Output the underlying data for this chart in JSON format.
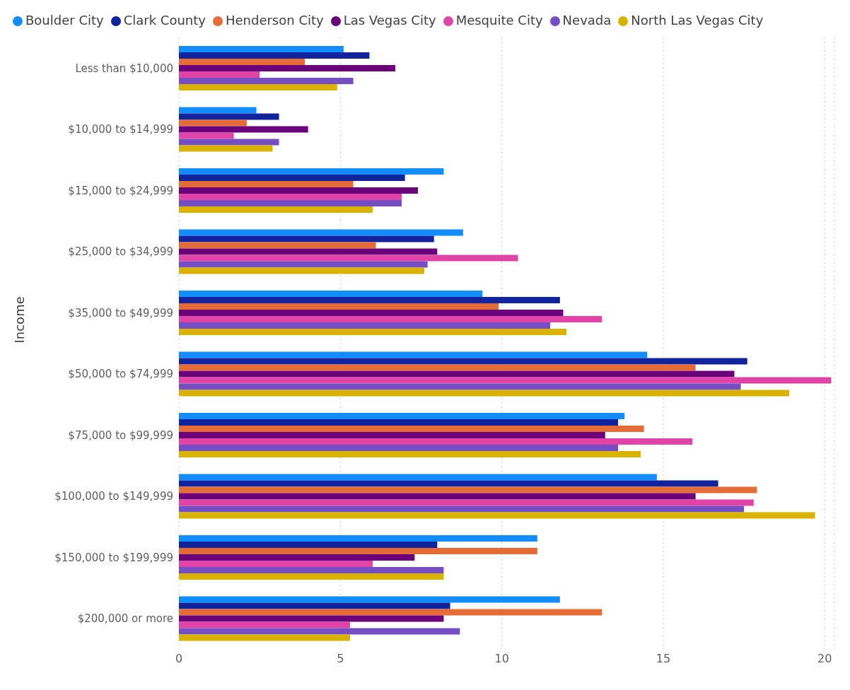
{
  "chart_data": {
    "type": "bar",
    "orientation": "horizontal",
    "ylabel": "Income",
    "legend": "top left",
    "grid": "x",
    "line_style": "dotted",
    "categories": [
      "Less than $10,000",
      "$10,000 to $14,999",
      "$15,000 to $24,999",
      "$25,000 to $34,999",
      "$35,000 to $49,999",
      "$50,000 to $74,999",
      "$75,000 to $99,999",
      "$100,000 to $149,999",
      "$150,000 to $199,999",
      "$200,000 or more"
    ],
    "xlim": [
      0,
      20.3
    ],
    "xticks": [
      0,
      5,
      10,
      15,
      20
    ],
    "series": [
      {
        "name": "Boulder City",
        "color": "#118dff",
        "values": [
          5.1,
          2.4,
          8.2,
          8.8,
          9.4,
          14.5,
          13.8,
          14.8,
          11.1,
          11.8
        ]
      },
      {
        "name": "Clark County",
        "color": "#12239e",
        "values": [
          5.9,
          3.1,
          7.0,
          7.9,
          11.8,
          17.6,
          13.6,
          16.7,
          8.0,
          8.4
        ]
      },
      {
        "name": "Henderson City",
        "color": "#e66c37",
        "values": [
          3.9,
          2.1,
          5.4,
          6.1,
          9.9,
          16.0,
          14.4,
          17.9,
          11.1,
          13.1
        ]
      },
      {
        "name": "Las Vegas City",
        "color": "#6b007b",
        "values": [
          6.7,
          4.0,
          7.4,
          8.0,
          11.9,
          17.2,
          13.2,
          16.0,
          7.3,
          8.2
        ]
      },
      {
        "name": "Mesquite City",
        "color": "#e044a7",
        "values": [
          2.5,
          1.7,
          6.9,
          10.5,
          13.1,
          20.2,
          15.9,
          17.8,
          6.0,
          5.3
        ]
      },
      {
        "name": "Nevada",
        "color": "#744ec2",
        "values": [
          5.4,
          3.1,
          6.9,
          7.7,
          11.5,
          17.4,
          13.6,
          17.5,
          8.2,
          8.7
        ]
      },
      {
        "name": "North Las Vegas  City",
        "color": "#d9b300",
        "values": [
          4.9,
          2.9,
          6.0,
          7.6,
          12.0,
          18.9,
          14.3,
          19.7,
          8.2,
          5.3
        ]
      }
    ]
  }
}
